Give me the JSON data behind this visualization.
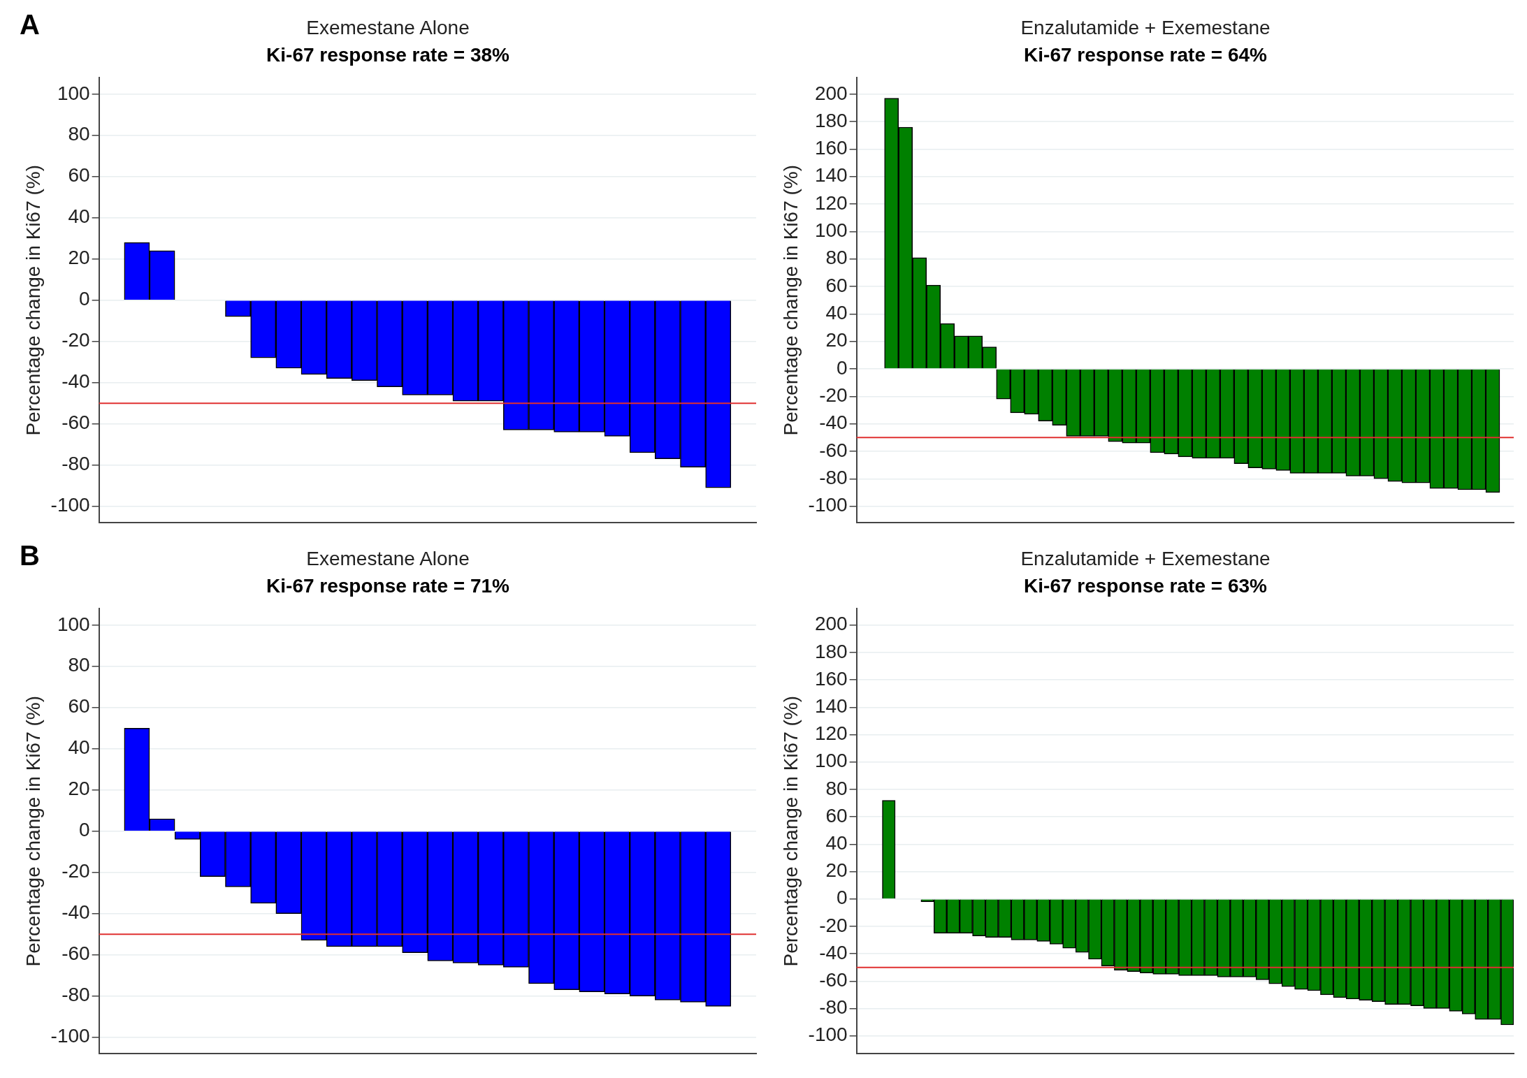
{
  "chart_data": [
    {
      "type": "bar",
      "title": "Exemestane Alone",
      "subtitle": "Ki-67 response rate = 38%",
      "ylabel": "Percentage change in Ki67 (%)",
      "annotations": [
        "A"
      ],
      "categories": [
        null,
        null,
        null,
        null,
        null,
        null,
        null,
        null,
        null,
        null,
        null,
        null,
        null,
        null,
        null,
        null,
        null,
        null,
        null,
        null,
        null,
        null,
        null,
        null,
        null,
        null
      ],
      "series": [
        {
          "color": "#0000ff",
          "values": [
            null,
            28,
            24,
            null,
            null,
            -8,
            -28,
            -33,
            -36,
            -38,
            -39,
            -42,
            -46,
            -46,
            -49,
            -49,
            -63,
            -63,
            -64,
            -64,
            -66,
            -74,
            -77,
            -81,
            -91,
            null
          ]
        }
      ],
      "ylim": [
        -108,
        108
      ],
      "yticks": [
        -100,
        -80,
        -60,
        -40,
        -20,
        0,
        20,
        40,
        60,
        80,
        100
      ],
      "grid": "y",
      "tick_labels": "y",
      "ref_lines": [
        {
          "axis": "y",
          "value": -50,
          "color": "#e03030"
        }
      ]
    },
    {
      "type": "bar",
      "title": "Enzalutamide + Exemestane",
      "subtitle": "Ki-67 response rate = 64%",
      "ylabel": "Percentage change in Ki67 (%)",
      "categories": [
        null,
        null,
        null,
        null,
        null,
        null,
        null,
        null,
        null,
        null,
        null,
        null,
        null,
        null,
        null,
        null,
        null,
        null,
        null,
        null,
        null,
        null,
        null,
        null,
        null,
        null,
        null,
        null,
        null,
        null,
        null,
        null,
        null,
        null,
        null,
        null,
        null,
        null,
        null,
        null,
        null,
        null,
        null,
        null,
        null,
        null,
        null
      ],
      "series": [
        {
          "color": "#008000",
          "values": [
            null,
            null,
            197,
            176,
            81,
            61,
            33,
            24,
            24,
            16,
            -22,
            -32,
            -33,
            -38,
            -41,
            -49,
            -49,
            -49,
            -53,
            -54,
            -54,
            -61,
            -62,
            -64,
            -65,
            -65,
            -65,
            -69,
            -72,
            -73,
            -74,
            -76,
            -76,
            -76,
            -76,
            -78,
            -78,
            -80,
            -82,
            -83,
            -83,
            -87,
            -87,
            -88,
            -88,
            -90,
            null
          ]
        }
      ],
      "ylim": [
        -112,
        212
      ],
      "yticks": [
        -100,
        -80,
        -60,
        -40,
        -20,
        0,
        20,
        40,
        60,
        80,
        100,
        120,
        140,
        160,
        180,
        200
      ],
      "grid": "y",
      "tick_labels": "y",
      "ref_lines": [
        {
          "axis": "y",
          "value": -50,
          "color": "#e03030"
        }
      ]
    },
    {
      "type": "bar",
      "title": "Exemestane Alone",
      "subtitle": "Ki-67 response rate = 71%",
      "ylabel": "Percentage change in Ki67 (%)",
      "annotations": [
        "B"
      ],
      "categories": [
        null,
        null,
        null,
        null,
        null,
        null,
        null,
        null,
        null,
        null,
        null,
        null,
        null,
        null,
        null,
        null,
        null,
        null,
        null,
        null,
        null,
        null,
        null,
        null,
        null,
        null
      ],
      "series": [
        {
          "color": "#0000ff",
          "values": [
            null,
            50,
            6,
            -4,
            -22,
            -27,
            -35,
            -40,
            -53,
            -56,
            -56,
            -56,
            -59,
            -63,
            -64,
            -65,
            -66,
            -74,
            -77,
            -78,
            -79,
            -80,
            -82,
            -83,
            -85,
            null
          ]
        }
      ],
      "ylim": [
        -108,
        108
      ],
      "yticks": [
        -100,
        -80,
        -60,
        -40,
        -20,
        0,
        20,
        40,
        60,
        80,
        100
      ],
      "grid": "y",
      "tick_labels": "y",
      "ref_lines": [
        {
          "axis": "y",
          "value": -50,
          "color": "#e03030"
        }
      ]
    },
    {
      "type": "bar",
      "title": "Enzalutamide + Exemestane",
      "subtitle": "Ki-67 response rate = 63%",
      "ylabel": "Percentage change in Ki67 (%)",
      "categories": [
        null,
        null,
        null,
        null,
        null,
        null,
        null,
        null,
        null,
        null,
        null,
        null,
        null,
        null,
        null,
        null,
        null,
        null,
        null,
        null,
        null,
        null,
        null,
        null,
        null,
        null,
        null,
        null,
        null,
        null,
        null,
        null,
        null,
        null,
        null,
        null,
        null,
        null,
        null,
        null,
        null,
        null,
        null,
        null,
        null,
        null,
        null,
        null,
        null,
        null,
        null
      ],
      "series": [
        {
          "color": "#008000",
          "values": [
            null,
            null,
            72,
            null,
            null,
            -2,
            -25,
            -25,
            -25,
            -27,
            -28,
            -28,
            -30,
            -30,
            -31,
            -33,
            -36,
            -39,
            -44,
            -49,
            -52,
            -53,
            -54,
            -55,
            -55,
            -56,
            -56,
            -56,
            -57,
            -57,
            -57,
            -59,
            -62,
            -64,
            -66,
            -67,
            -70,
            -72,
            -73,
            -74,
            -75,
            -77,
            -77,
            -78,
            -80,
            -80,
            -82,
            -84,
            -88,
            -88,
            -92
          ]
        }
      ],
      "ylim": [
        -113,
        212
      ],
      "yticks": [
        -100,
        -80,
        -60,
        -40,
        -20,
        0,
        20,
        40,
        60,
        80,
        100,
        120,
        140,
        160,
        180,
        200
      ],
      "grid": "y",
      "tick_labels": "y",
      "ref_lines": [
        {
          "axis": "y",
          "value": -50,
          "color": "#e03030"
        }
      ]
    }
  ]
}
